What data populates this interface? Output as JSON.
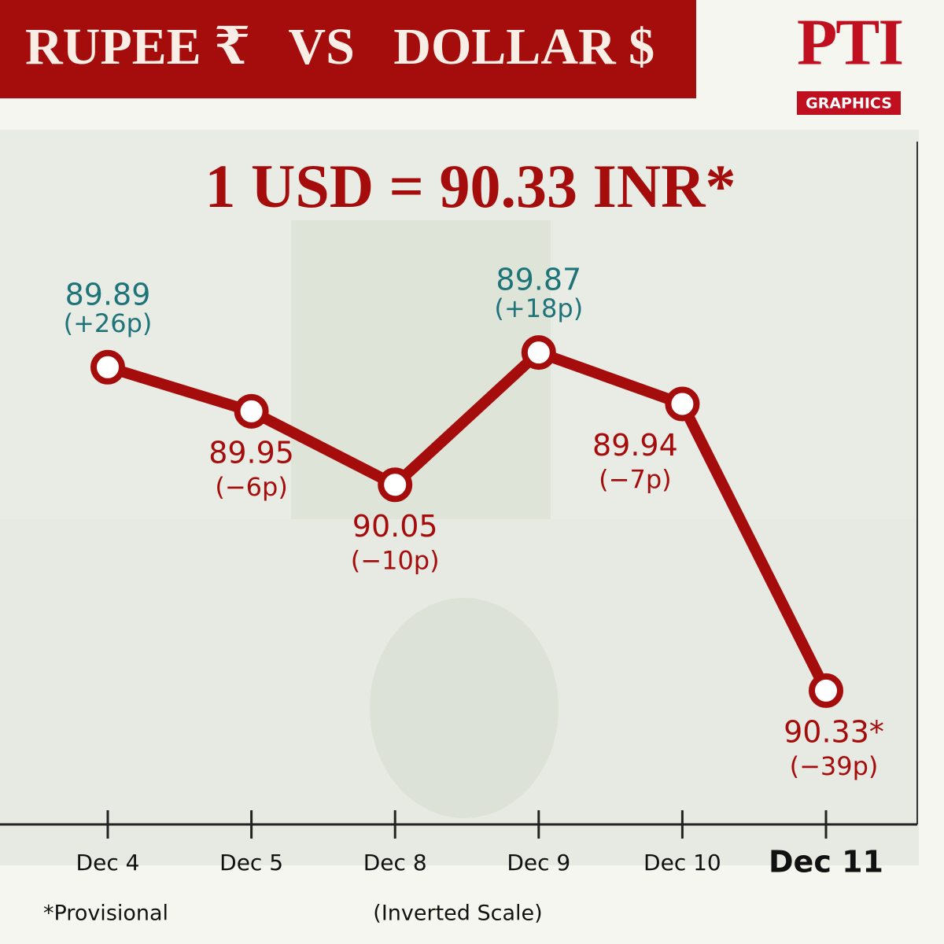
{
  "header": {
    "title": "RUPEE ₹   VS   DOLLAR $",
    "logo": "PTI",
    "logo_subtitle": "GRAPHICS"
  },
  "chart_data": {
    "type": "line",
    "headline": "1 USD = 90.33 INR*",
    "categories": [
      "Dec 4",
      "Dec 5",
      "Dec 8",
      "Dec 9",
      "Dec 10",
      "Dec 11"
    ],
    "values": [
      89.89,
      89.95,
      90.05,
      89.87,
      89.94,
      90.33
    ],
    "value_labels": [
      "89.89",
      "89.95",
      "90.05",
      "89.87",
      "89.94",
      "90.33*"
    ],
    "change_labels": [
      "(+26p)",
      "(−6p)",
      "(−10p)",
      "(+18p)",
      "(−7p)",
      "(−39p)"
    ],
    "label_colors": [
      "#1f7479",
      "#a50d0d",
      "#a50d0d",
      "#1f7479",
      "#a50d0d",
      "#a50d0d"
    ],
    "color": "#a50d0d",
    "ylim": [
      89.75,
      90.45
    ],
    "inverted": true,
    "footnote": "*Provisional",
    "scale_note": "(Inverted Scale)"
  }
}
